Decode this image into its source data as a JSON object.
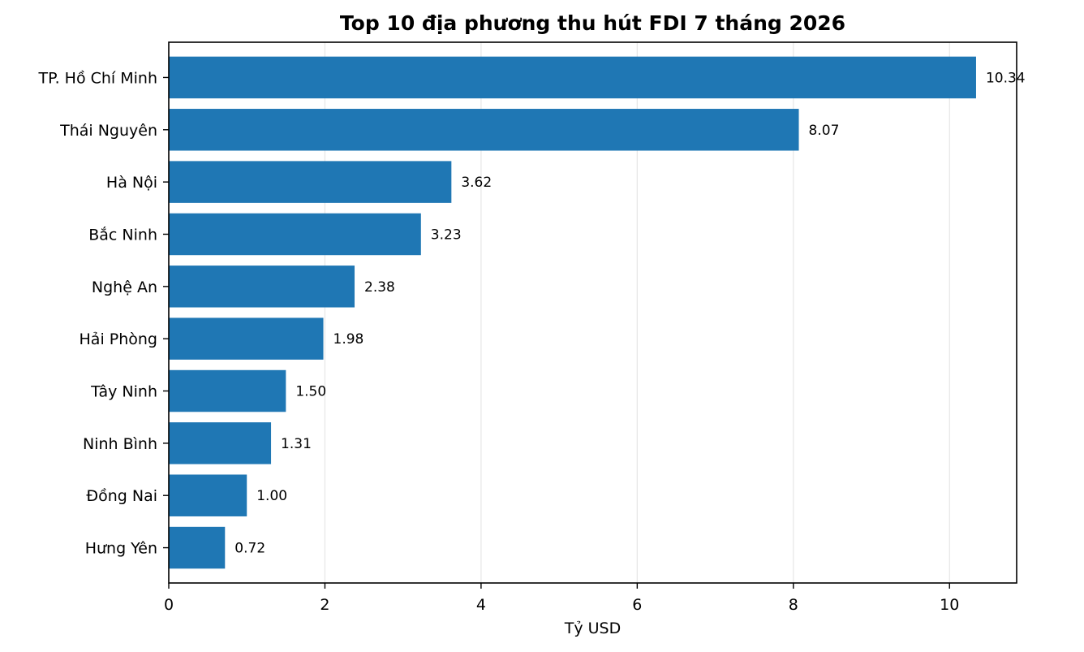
{
  "chart_data": {
    "type": "bar",
    "orientation": "horizontal",
    "title": "Top 10 địa phương thu hút FDI 7 tháng 2026",
    "xlabel": "Tỷ USD",
    "ylabel": "",
    "xlim": [
      0,
      10.86
    ],
    "xticks": [
      0,
      2,
      4,
      6,
      8,
      10
    ],
    "grid": "vertical",
    "bar_color": "#1f77b4",
    "categories": [
      "TP. Hồ Chí Minh",
      "Thái Nguyên",
      "Hà Nội",
      "Bắc Ninh",
      "Nghệ An",
      "Hải Phòng",
      "Tây Ninh",
      "Ninh Bình",
      "Đồng Nai",
      "Hưng Yên"
    ],
    "values": [
      10.34,
      8.07,
      3.62,
      3.23,
      2.38,
      1.98,
      1.5,
      1.31,
      1.0,
      0.72
    ],
    "data_labels": [
      "10.34",
      "8.07",
      "3.62",
      "3.23",
      "2.38",
      "1.98",
      "1.50",
      "1.31",
      "1.00",
      "0.72"
    ]
  }
}
